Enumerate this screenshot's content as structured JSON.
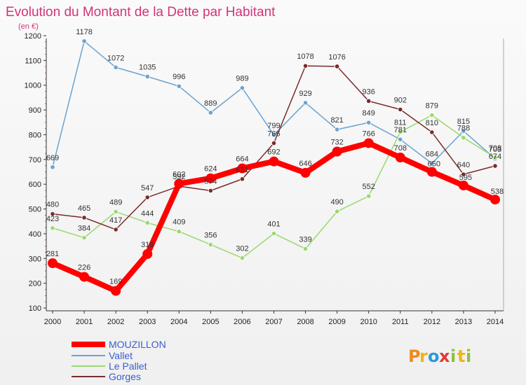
{
  "chart_data": {
    "type": "line",
    "title": "Evolution du Montant de la Dette par Habitant",
    "ylabel": "(en €)",
    "xlabel": "",
    "categories": [
      "2000",
      "2001",
      "2002",
      "2003",
      "2004",
      "2005",
      "2006",
      "2007",
      "2008",
      "2009",
      "2010",
      "2011",
      "2012",
      "2013",
      "2014"
    ],
    "ylim": [
      100,
      1200
    ],
    "yticks": [
      100,
      200,
      300,
      400,
      500,
      600,
      700,
      800,
      900,
      1000,
      1100,
      1200
    ],
    "grid": false,
    "legend_position": "bottom-left",
    "series": [
      {
        "name": "MOUZILLON",
        "color": "#ff0000",
        "values": [
          281,
          226,
          169,
          318,
          602,
          624,
          664,
          692,
          646,
          732,
          766,
          708,
          650,
          595,
          538
        ],
        "labels": [
          "281",
          "226",
          "169",
          "318",
          "602",
          "624",
          "664",
          "692",
          "646",
          "732",
          "766",
          "708",
          "",
          "",
          ""
        ]
      },
      {
        "name": "Vallet",
        "color": "#6aa3d0",
        "values": [
          669,
          1178,
          1072,
          1035,
          996,
          889,
          989,
          799,
          929,
          821,
          849,
          781,
          684,
          815,
          703
        ],
        "labels": [
          "669",
          "1178",
          "1072",
          "1035",
          "996",
          "889",
          "989",
          "799",
          "929",
          "821",
          "849",
          "781",
          "684",
          "815",
          "703"
        ]
      },
      {
        "name": "Le Pallet",
        "color": "#9ad86c",
        "values": [
          423,
          384,
          489,
          444,
          409,
          356,
          302,
          401,
          339,
          490,
          552,
          811,
          879,
          788,
          708
        ],
        "labels": [
          "423",
          "384",
          "489",
          "444",
          "409",
          "356",
          "302",
          "401",
          "339",
          "490",
          "552",
          "811",
          "879",
          "788",
          "708"
        ]
      },
      {
        "name": "Gorges",
        "color": "#7b2b2b",
        "values": [
          480,
          465,
          417,
          547,
          592,
          574,
          621,
          766,
          1078,
          1076,
          936,
          902,
          810,
          640,
          674
        ],
        "labels": [
          "480",
          "465",
          "417",
          "547",
          "592",
          "574",
          "621",
          "766",
          "1078",
          "1076",
          "936",
          "902",
          "810",
          "640",
          "674"
        ]
      }
    ],
    "extra_labels": [
      "650",
      "595",
      "538"
    ]
  },
  "logo": {
    "letters": [
      "P",
      "r",
      "o",
      "x",
      "i",
      "t",
      "i"
    ],
    "colors": [
      "#f08a1c",
      "#f0b31c",
      "#2a9ad6",
      "#e03a3a",
      "#8ac43f",
      "#f0b31c",
      "#8ac43f"
    ]
  }
}
